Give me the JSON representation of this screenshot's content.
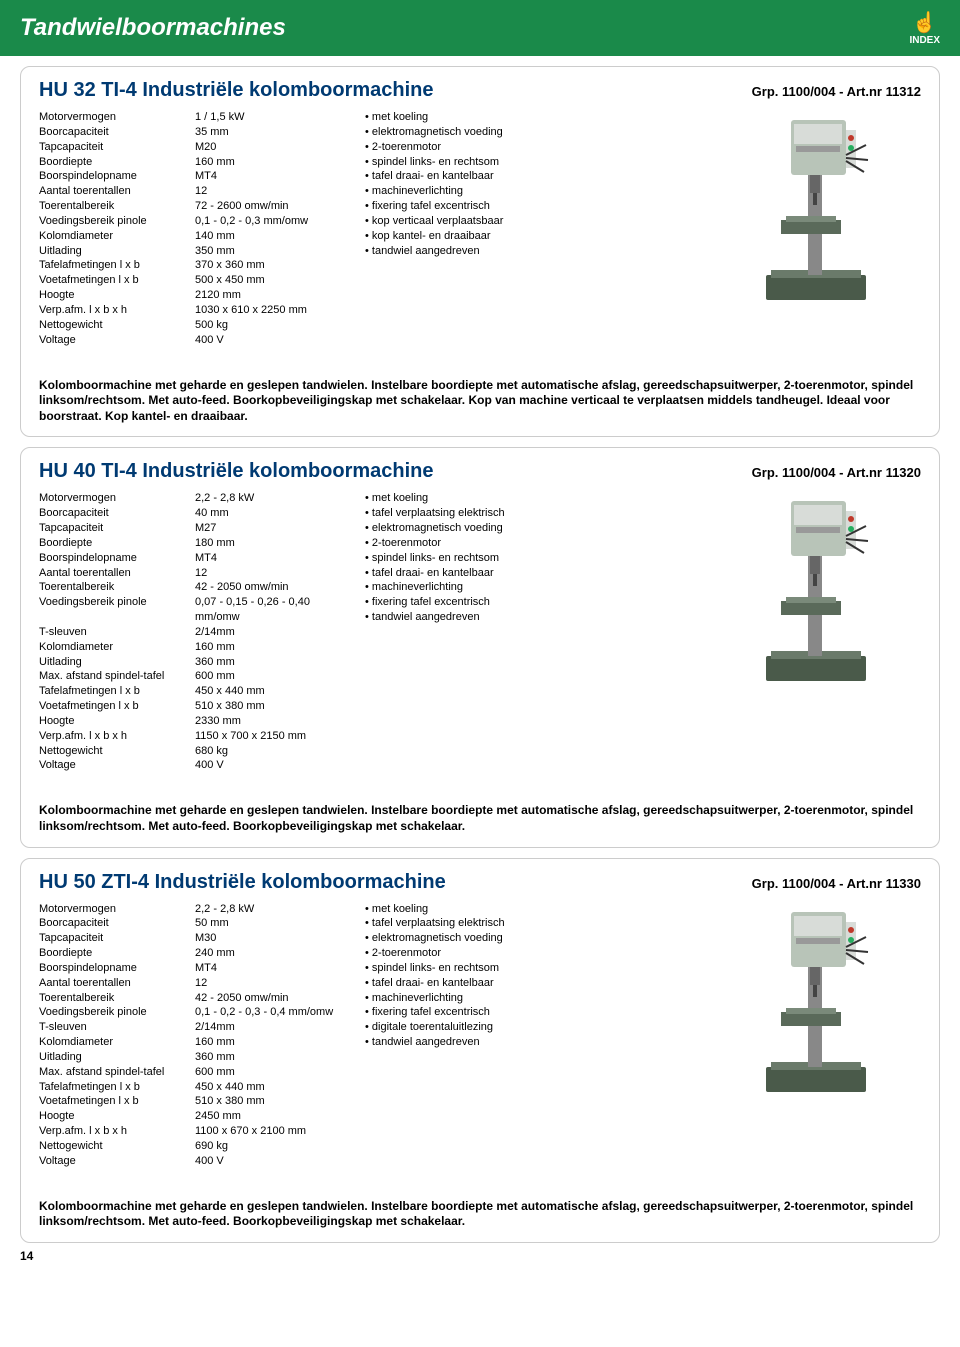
{
  "header": {
    "title": "Tandwielboormachines",
    "index_label": "INDEX"
  },
  "page_number": "14",
  "colors": {
    "header_bg": "#1a8a4a",
    "title_color": "#003a72"
  },
  "products": [
    {
      "title": "HU 32 TI-4 Industriële kolomboormachine",
      "ref": "Grp. 1100/004 - Art.nr 11312",
      "specs": [
        {
          "label": "Motorvermogen",
          "value": "1 / 1,5 kW"
        },
        {
          "label": "Boorcapaciteit",
          "value": "35 mm"
        },
        {
          "label": "Tapcapaciteit",
          "value": "M20"
        },
        {
          "label": "Boordiepte",
          "value": "160 mm"
        },
        {
          "label": "Boorspindelopname",
          "value": "MT4"
        },
        {
          "label": "Aantal toerentallen",
          "value": "12"
        },
        {
          "label": "Toerentalbereik",
          "value": "72 - 2600 omw/min"
        },
        {
          "label": "Voedingsbereik pinole",
          "value": "0,1 - 0,2 - 0,3 mm/omw"
        },
        {
          "label": "Kolomdiameter",
          "value": "140 mm"
        },
        {
          "label": "Uitlading",
          "value": "350 mm"
        },
        {
          "label": "Tafelafmetingen l x b",
          "value": "370 x 360 mm"
        },
        {
          "label": "Voetafmetingen l x b",
          "value": "500 x 450 mm"
        },
        {
          "label": "Hoogte",
          "value": "2120 mm"
        },
        {
          "label": "Verp.afm. l x b x h",
          "value": "1030 x 610 x 2250 mm"
        },
        {
          "label": "Nettogewicht",
          "value": "500 kg"
        },
        {
          "label": "Voltage",
          "value": "400 V"
        }
      ],
      "features": [
        "met koeling",
        "elektromagnetisch voeding",
        "2-toerenmotor",
        "spindel links- en rechtsom",
        "tafel draai- en kantelbaar",
        "machineverlichting",
        "fixering tafel excentrisch",
        "kop verticaal verplaatsbaar",
        "kop kantel- en draaibaar",
        "tandwiel aangedreven"
      ],
      "description": "Kolomboormachine met geharde en geslepen tandwielen. Instelbare boordiepte met automatische afslag, gereedschapsuitwerper, 2-toerenmotor, spindel linksom/rechtsom. Met auto-feed. Boorkopbeveiligingskap met schakelaar. Kop van machine verticaal te verplaatsen middels tandheugel. Ideaal voor boorstraat. Kop kantel- en draaibaar."
    },
    {
      "title": "HU 40 TI-4 Industriële kolomboormachine",
      "ref": "Grp. 1100/004 - Art.nr 11320",
      "specs": [
        {
          "label": "Motorvermogen",
          "value": "2,2 - 2,8 kW"
        },
        {
          "label": "Boorcapaciteit",
          "value": "40 mm"
        },
        {
          "label": "Tapcapaciteit",
          "value": "M27"
        },
        {
          "label": "Boordiepte",
          "value": "180 mm"
        },
        {
          "label": "Boorspindelopname",
          "value": "MT4"
        },
        {
          "label": "Aantal toerentallen",
          "value": "12"
        },
        {
          "label": "Toerentalbereik",
          "value": "42 - 2050 omw/min"
        },
        {
          "label": "Voedingsbereik pinole",
          "value": "0,07 - 0,15 - 0,26 - 0,40 mm/omw"
        },
        {
          "label": "T-sleuven",
          "value": "2/14mm"
        },
        {
          "label": "Kolomdiameter",
          "value": "160 mm"
        },
        {
          "label": "Uitlading",
          "value": "360 mm"
        },
        {
          "label": "Max. afstand spindel-tafel",
          "value": "600 mm"
        },
        {
          "label": "Tafelafmetingen l x b",
          "value": "450 x 440 mm"
        },
        {
          "label": "Voetafmetingen l x b",
          "value": "510 x 380 mm"
        },
        {
          "label": "Hoogte",
          "value": "2330 mm"
        },
        {
          "label": "Verp.afm. l x b x h",
          "value": "1150 x 700 x 2150 mm"
        },
        {
          "label": "Nettogewicht",
          "value": "680 kg"
        },
        {
          "label": "Voltage",
          "value": "400 V"
        }
      ],
      "features": [
        "met koeling",
        "tafel verplaatsing elektrisch",
        "elektromagnetisch voeding",
        "2-toerenmotor",
        "spindel links- en rechtsom",
        "tafel draai- en kantelbaar",
        "machineverlichting",
        "fixering tafel excentrisch",
        "tandwiel aangedreven"
      ],
      "description": "Kolomboormachine met geharde en geslepen tandwielen. Instelbare boordiepte met automatische afslag, gereedschapsuitwerper, 2-toerenmotor, spindel linksom/rechtsom. Met auto-feed. Boorkopbeveiligingskap met schakelaar."
    },
    {
      "title": "HU 50 ZTI-4 Industriële kolomboormachine",
      "ref": "Grp. 1100/004 - Art.nr 11330",
      "specs": [
        {
          "label": "Motorvermogen",
          "value": "2,2 - 2,8 kW"
        },
        {
          "label": "Boorcapaciteit",
          "value": "50 mm"
        },
        {
          "label": "Tapcapaciteit",
          "value": "M30"
        },
        {
          "label": "Boordiepte",
          "value": "240 mm"
        },
        {
          "label": "Boorspindelopname",
          "value": "MT4"
        },
        {
          "label": "Aantal toerentallen",
          "value": "12"
        },
        {
          "label": "Toerentalbereik",
          "value": "42 - 2050 omw/min"
        },
        {
          "label": "Voedingsbereik pinole",
          "value": "0,1 - 0,2 - 0,3 - 0,4 mm/omw"
        },
        {
          "label": "T-sleuven",
          "value": "2/14mm"
        },
        {
          "label": "Kolomdiameter",
          "value": "160 mm"
        },
        {
          "label": "Uitlading",
          "value": "360 mm"
        },
        {
          "label": "Max. afstand spindel-tafel",
          "value": "600 mm"
        },
        {
          "label": "Tafelafmetingen l x b",
          "value": "450 x 440 mm"
        },
        {
          "label": "Voetafmetingen l x b",
          "value": "510 x 380 mm"
        },
        {
          "label": "Hoogte",
          "value": "2450 mm"
        },
        {
          "label": "Verp.afm. l x b x h",
          "value": "1100 x 670 x 2100 mm"
        },
        {
          "label": "Nettogewicht",
          "value": "690 kg"
        },
        {
          "label": "Voltage",
          "value": "400 V"
        }
      ],
      "features": [
        "met koeling",
        "tafel verplaatsing elektrisch",
        "elektromagnetisch voeding",
        "2-toerenmotor",
        "spindel links- en rechtsom",
        "tafel draai- en kantelbaar",
        "machineverlichting",
        "fixering tafel excentrisch",
        "digitale toerentaluitlezing",
        "tandwiel aangedreven"
      ],
      "description": "Kolomboormachine met geharde en geslepen tandwielen. Instelbare boordiepte met automatische afslag, gereedschapsuitwerper, 2-toerenmotor, spindel linksom/rechtsom. Met auto-feed. Boorkopbeveiligingskap met schakelaar."
    }
  ]
}
